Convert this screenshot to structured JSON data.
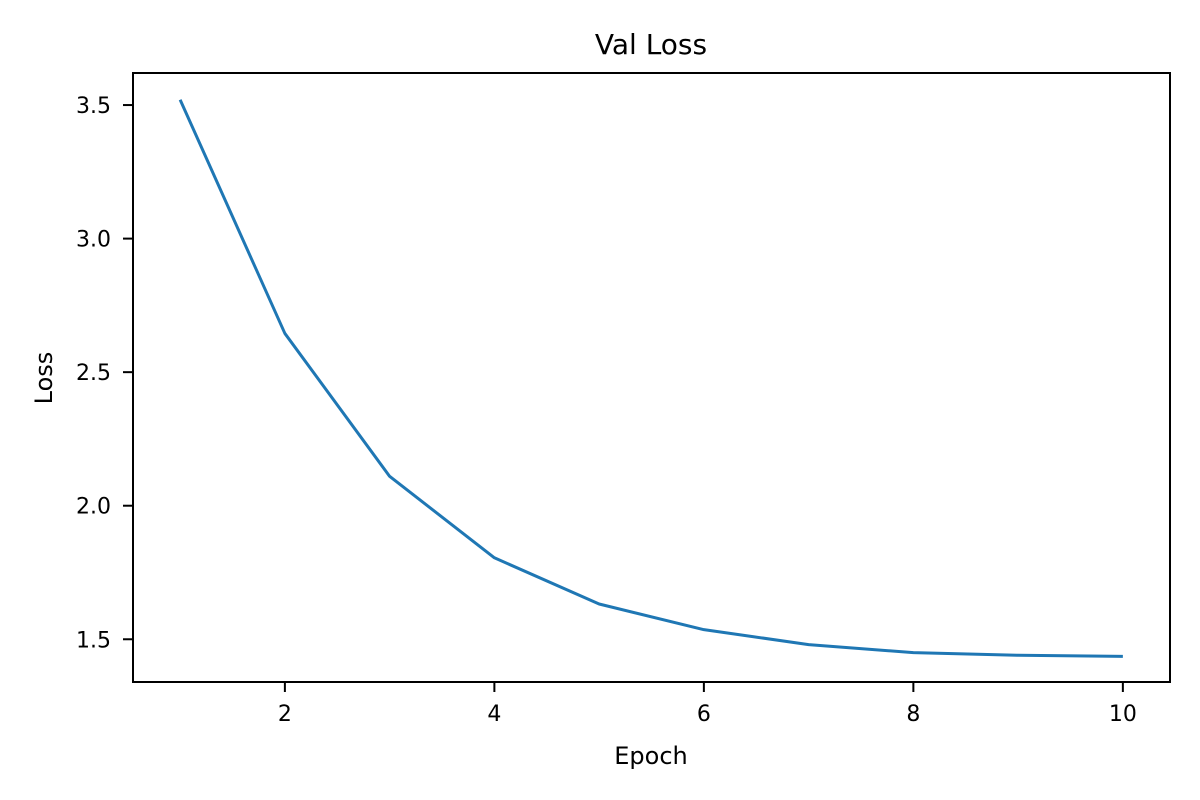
{
  "chart_data": {
    "type": "line",
    "title": "Val Loss",
    "xlabel": "Epoch",
    "ylabel": "Loss",
    "xlim": [
      0.55,
      10.45
    ],
    "ylim": [
      1.34,
      3.62
    ],
    "xticks": [
      2,
      4,
      6,
      8,
      10
    ],
    "yticks": [
      1.5,
      2.0,
      2.5,
      3.0,
      3.5
    ],
    "xtick_labels": [
      "2",
      "4",
      "6",
      "8",
      "10"
    ],
    "ytick_labels": [
      "1.5",
      "2.0",
      "2.5",
      "3.0",
      "3.5"
    ],
    "grid": false,
    "legend": "none",
    "series": [
      {
        "x": [
          1,
          2,
          3,
          4,
          5,
          6,
          7,
          8,
          9,
          10
        ],
        "values": [
          3.52,
          2.645,
          2.11,
          1.805,
          1.632,
          1.536,
          1.48,
          1.45,
          1.44,
          1.436
        ],
        "color": "#1f77b4"
      }
    ]
  }
}
